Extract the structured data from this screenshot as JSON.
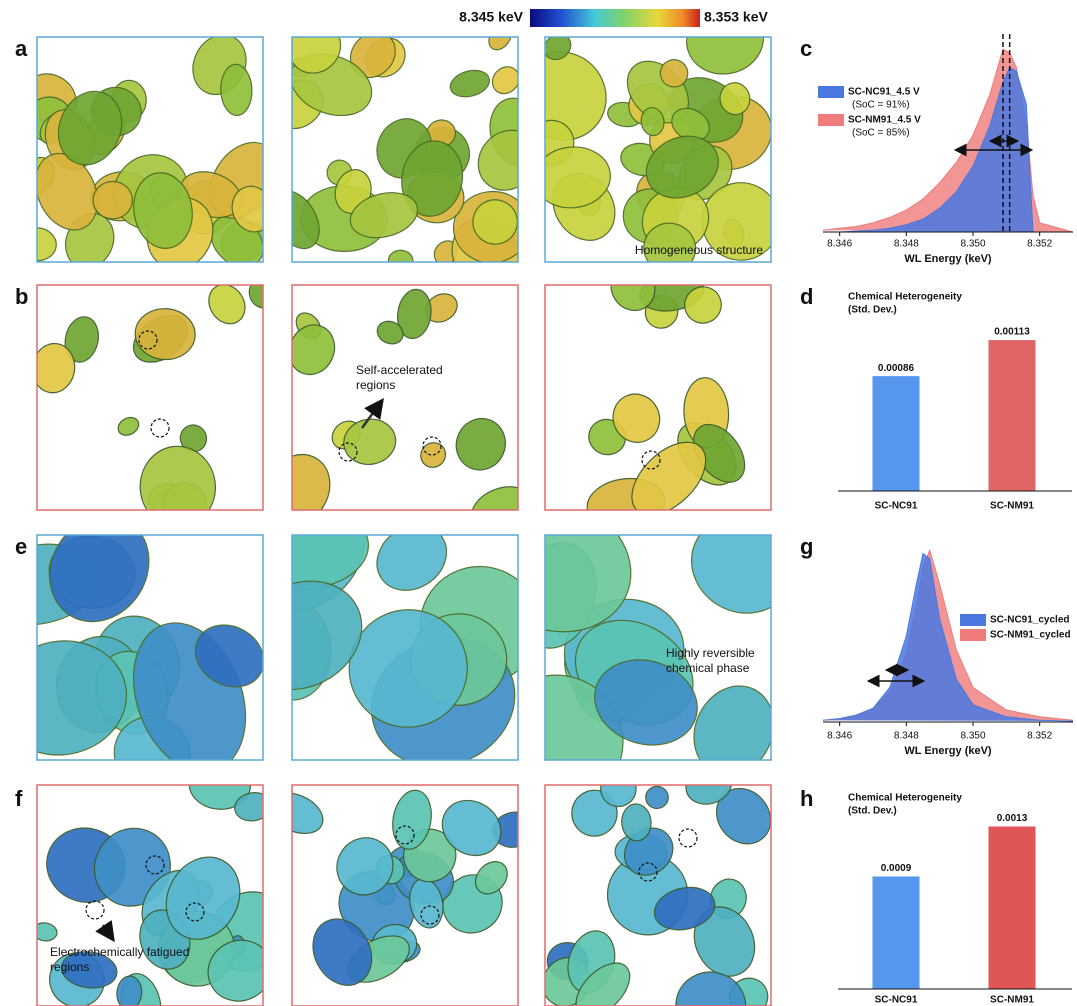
{
  "figure": {
    "colorbar": {
      "min_label": "8.345 keV",
      "max_label": "8.353 keV"
    },
    "panel_labels": [
      "a",
      "b",
      "c",
      "d",
      "e",
      "f",
      "g",
      "h"
    ],
    "annotations": {
      "homogeneous": [
        "Homogeneous structure"
      ],
      "self_accelerated": [
        "Self-accelerated",
        "regions"
      ],
      "reversible": [
        "Highly reversible",
        "chemical phase"
      ],
      "fatigued": [
        "Electrochemically fatigued",
        "regions"
      ]
    }
  },
  "chart_data": [
    {
      "type": "area",
      "x_label": "WL Energy (keV)",
      "xlim": [
        8.3455,
        8.353
      ],
      "xticks": [
        8.346,
        8.348,
        {
          "value": 8.35,
          "label": "8.350"
        },
        8.352
      ],
      "ylim": [
        0,
        1.05
      ],
      "vlines": [
        8.3509,
        8.3511
      ],
      "series": [
        {
          "name": "SC-NM91_4.5 V",
          "note_label": "(SoC = 85%)",
          "color": "#ef7b7b",
          "x": [
            8.3455,
            8.346,
            8.3465,
            8.347,
            8.3475,
            8.348,
            8.3485,
            8.349,
            8.3495,
            8.35,
            8.3505,
            8.3509,
            8.3511,
            8.3513,
            8.3516,
            8.3518,
            8.352,
            8.353
          ],
          "values": [
            0.01,
            0.02,
            0.03,
            0.05,
            0.08,
            0.12,
            0.18,
            0.27,
            0.38,
            0.53,
            0.75,
            1.0,
            0.98,
            0.9,
            0.6,
            0.2,
            0.05,
            0.0
          ]
        },
        {
          "name": "SC-NC91_4.5 V",
          "note_label": "(SoC = 91%)",
          "color": "#4a78e0",
          "x": [
            8.3455,
            8.346,
            8.3465,
            8.347,
            8.3475,
            8.348,
            8.3485,
            8.349,
            8.3495,
            8.35,
            8.3505,
            8.3509,
            8.3511,
            8.3513,
            8.3516,
            8.3518,
            8.352,
            8.353
          ],
          "values": [
            0,
            0,
            0.005,
            0.01,
            0.02,
            0.04,
            0.07,
            0.13,
            0.22,
            0.36,
            0.58,
            0.82,
            0.9,
            0.88,
            0.7,
            0,
            0,
            0
          ]
        }
      ]
    },
    {
      "type": "bar",
      "title": [
        "Chemical Heterogeneity",
        "(Std. Dev.)"
      ],
      "categories": [
        "SC-NC91",
        "SC-NM91"
      ],
      "values": [
        0.00086,
        0.00113
      ],
      "colors": [
        "#5596ee",
        "#e06666"
      ],
      "ylim": [
        0,
        0.0014
      ]
    },
    {
      "type": "area",
      "x_label": "WL Energy (keV)",
      "xlim": [
        8.3455,
        8.353
      ],
      "xticks": [
        8.346,
        8.348,
        {
          "value": 8.35,
          "label": "8.350"
        },
        8.352
      ],
      "ylim": [
        0,
        1.03
      ],
      "series": [
        {
          "name": "SC-NM91_cycled",
          "color": "#ef7b7b",
          "x": [
            8.3455,
            8.346,
            8.3465,
            8.347,
            8.3475,
            8.348,
            8.3483,
            8.3485,
            8.3487,
            8.349,
            8.3495,
            8.35,
            8.351,
            8.352,
            8.353
          ],
          "values": [
            0.01,
            0.02,
            0.04,
            0.08,
            0.17,
            0.4,
            0.68,
            0.9,
            1.0,
            0.8,
            0.42,
            0.2,
            0.07,
            0.03,
            0.01
          ]
        },
        {
          "name": "SC-NC91_cycled",
          "color": "#4a78e0",
          "x": [
            8.3455,
            8.346,
            8.3465,
            8.347,
            8.3475,
            8.348,
            8.3483,
            8.3485,
            8.3487,
            8.349,
            8.3495,
            8.35,
            8.351,
            8.352,
            8.353
          ],
          "values": [
            0.01,
            0.02,
            0.04,
            0.08,
            0.2,
            0.5,
            0.8,
            0.98,
            0.95,
            0.6,
            0.25,
            0.1,
            0.03,
            0.01,
            0.005
          ]
        }
      ]
    },
    {
      "type": "bar",
      "title": [
        "Chemical Heterogeneity",
        "(Std. Dev.)"
      ],
      "categories": [
        "SC-NC91",
        "SC-NM91"
      ],
      "values": [
        0.0009,
        0.0013
      ],
      "colors": [
        "#5596ee",
        "#e05555"
      ],
      "ylim": [
        0,
        0.0014
      ]
    }
  ]
}
